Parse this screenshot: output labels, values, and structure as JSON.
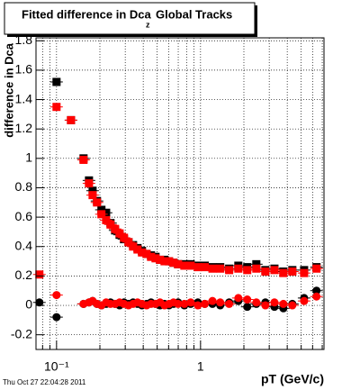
{
  "chart_data": {
    "type": "scatter",
    "title": "Fitted difference in Dca",
    "title_subscript": "z",
    "title_suffix": "Global Tracks",
    "y_label": "difference in Dca",
    "x_label": "pT (GeV/c)",
    "timestamp": "Thu Oct 27 22:04:28 2011",
    "log_x": true,
    "grid": true,
    "xlim": [
      0.072,
      7.2
    ],
    "ylim": [
      -0.3,
      1.82
    ],
    "xticks": [
      {
        "value": 0.1,
        "label": "10⁻¹"
      },
      1
    ],
    "xminorticks": [
      0.08,
      0.09,
      0.2,
      0.3,
      0.4,
      0.5,
      0.6,
      0.7,
      0.8,
      0.9,
      2,
      3,
      4,
      5,
      6,
      7
    ],
    "yticks": [
      -0.2,
      0,
      0.2,
      0.4,
      0.6,
      0.8,
      1,
      1.2,
      1.4,
      1.6,
      1.8
    ],
    "x": [
      0.076,
      0.1,
      0.126,
      0.154,
      0.168,
      0.178,
      0.191,
      0.205,
      0.221,
      0.237,
      0.255,
      0.274,
      0.294,
      0.316,
      0.34,
      0.365,
      0.392,
      0.422,
      0.453,
      0.487,
      0.523,
      0.562,
      0.604,
      0.649,
      0.698,
      0.772,
      0.854,
      0.958,
      1.07,
      1.21,
      1.37,
      1.58,
      1.83,
      2.11,
      2.44,
      2.82,
      3.26,
      3.76,
      4.34,
      5.24,
      6.39
    ],
    "series": [
      {
        "color": "#000000",
        "marker": "square",
        "values": [
          null,
          1.52,
          1.26,
          1.0,
          0.85,
          0.78,
          0.71,
          0.65,
          0.63,
          0.56,
          0.51,
          0.48,
          0.45,
          0.43,
          0.41,
          0.39,
          0.37,
          0.35,
          0.34,
          0.33,
          0.31,
          0.31,
          0.3,
          0.29,
          0.28,
          0.28,
          0.28,
          0.27,
          0.27,
          0.26,
          0.26,
          0.25,
          0.27,
          0.26,
          0.28,
          0.24,
          0.25,
          0.23,
          0.24,
          0.24,
          0.26
        ]
      },
      {
        "color": "#000000",
        "marker": "circle",
        "values": [
          0.02,
          -0.08,
          null,
          0.01,
          0.02,
          0.03,
          0.01,
          0.0,
          0.01,
          0.02,
          0.01,
          0.0,
          0.02,
          0.01,
          0.02,
          0.01,
          0.0,
          0.01,
          0.02,
          0.01,
          0.0,
          0.01,
          0.0,
          0.01,
          0.02,
          0.0,
          0.01,
          0.02,
          0.01,
          0.01,
          0.0,
          0.02,
          0.03,
          -0.01,
          0.01,
          0.02,
          -0.01,
          -0.02,
          0.01,
          0.05,
          0.1
        ]
      },
      {
        "color": "#ff0000",
        "marker": "square",
        "values": [
          0.21,
          1.35,
          1.26,
          0.99,
          0.83,
          0.75,
          0.7,
          0.62,
          0.58,
          0.55,
          0.52,
          0.49,
          0.46,
          0.43,
          0.4,
          0.38,
          0.36,
          0.35,
          0.33,
          0.32,
          0.31,
          0.3,
          0.3,
          0.29,
          0.28,
          0.27,
          0.27,
          0.26,
          0.26,
          0.25,
          0.25,
          0.24,
          0.25,
          0.24,
          0.25,
          0.23,
          0.24,
          0.22,
          0.23,
          0.22,
          0.25
        ]
      },
      {
        "color": "#ff0000",
        "marker": "circle",
        "values": [
          null,
          0.07,
          null,
          0.01,
          0.02,
          0.03,
          0.01,
          0.0,
          0.02,
          0.01,
          0.01,
          0.02,
          0.01,
          0.0,
          0.01,
          0.02,
          0.01,
          0.0,
          0.01,
          0.01,
          0.02,
          0.0,
          0.01,
          0.02,
          0.01,
          0.01,
          0.02,
          0.0,
          0.01,
          0.03,
          0.02,
          0.01,
          0.05,
          0.04,
          0.02,
          0.0,
          0.02,
          0.01,
          0.0,
          0.03,
          0.06
        ]
      }
    ]
  }
}
